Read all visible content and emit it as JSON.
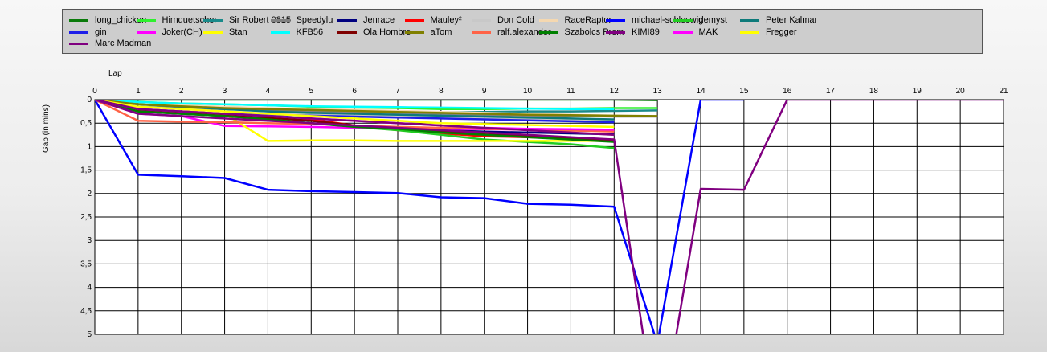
{
  "chart_data": {
    "type": "line",
    "xlabel": "Lap",
    "ylabel": "Gap (in mins)",
    "xlim": [
      0,
      21
    ],
    "ylim": [
      0,
      5
    ],
    "y_inverted": true,
    "grid": true,
    "x_ticks": [
      "0",
      "1",
      "2",
      "3",
      "4",
      "5",
      "6",
      "7",
      "8",
      "9",
      "10",
      "11",
      "12",
      "13",
      "14",
      "15",
      "16",
      "17",
      "18",
      "19",
      "20",
      "21"
    ],
    "y_ticks": [
      "0",
      "0,5",
      "1",
      "1,5",
      "2",
      "2,5",
      "3",
      "3,5",
      "4",
      "4,5",
      "5"
    ],
    "legend_position": "top",
    "series": [
      {
        "name": "long_chicken",
        "color": "#0a7a0a",
        "x": [
          0,
          1,
          2,
          3,
          4,
          5,
          6,
          7,
          8,
          9,
          10,
          11,
          12,
          13
        ],
        "y": [
          0,
          0,
          0,
          0,
          0,
          0,
          0,
          0,
          0,
          0,
          0,
          0,
          0,
          0.01
        ]
      },
      {
        "name": "Hirnquetscher",
        "color": "#2ef02e",
        "x": [
          0,
          1,
          2,
          3,
          4,
          5,
          6,
          7,
          8,
          9,
          10,
          11,
          12,
          13
        ],
        "y": [
          0,
          0.05,
          0.08,
          0.1,
          0.12,
          0.15,
          0.17,
          0.18,
          0.2,
          0.2,
          0.19,
          0.19,
          0.18,
          0.18
        ]
      },
      {
        "name": "Sir Robert 0815",
        "color": "#1a8a8a",
        "x": [
          0,
          1,
          2,
          3,
          4,
          5,
          6,
          7,
          8,
          9,
          10,
          11,
          12,
          13
        ],
        "y": [
          0,
          0.1,
          0.15,
          0.2,
          0.23,
          0.25,
          0.26,
          0.27,
          0.27,
          0.26,
          0.25,
          0.25,
          0.24,
          0.23
        ]
      },
      {
        "name": "Speedylu",
        "color": "#808080",
        "x": [
          0,
          1,
          2,
          3,
          4,
          5,
          6,
          7,
          8,
          9,
          10,
          11,
          12,
          13
        ],
        "y": [
          0,
          0.15,
          0.18,
          0.2,
          0.22,
          0.24,
          0.26,
          0.28,
          0.3,
          0.32,
          0.34,
          0.35,
          0.36,
          0.36
        ]
      },
      {
        "name": "Jenrace",
        "color": "#00007f",
        "x": [
          0,
          1,
          2,
          3,
          4,
          5,
          6,
          7,
          8,
          9,
          10,
          11,
          12
        ],
        "y": [
          0,
          0.25,
          0.3,
          0.33,
          0.38,
          0.45,
          0.55,
          0.62,
          0.65,
          0.68,
          0.7,
          0.72,
          0.74
        ]
      },
      {
        "name": "Mauley²",
        "color": "#ff0000",
        "x": [
          0,
          1,
          2,
          3,
          4,
          5,
          6,
          7,
          8,
          9,
          10,
          11,
          12
        ],
        "y": [
          0,
          0.2,
          0.25,
          0.3,
          0.35,
          0.42,
          0.55,
          0.65,
          0.72,
          0.78,
          0.8,
          0.83,
          0.85
        ]
      },
      {
        "name": "Don Cold",
        "color": "#c8c8c8",
        "x": [
          0,
          1,
          2,
          3,
          4,
          5,
          6,
          7,
          8,
          9,
          10,
          11,
          12
        ],
        "y": [
          0,
          0.15,
          0.2,
          0.25,
          0.3,
          0.32,
          0.34,
          0.36,
          0.38,
          0.4,
          0.42,
          0.44,
          0.45
        ]
      },
      {
        "name": "RaceRaptor",
        "color": "#f5d8b0",
        "x": [
          0,
          1,
          2,
          3,
          4,
          5,
          6,
          7,
          8,
          9,
          10,
          11,
          12
        ],
        "y": [
          0,
          0.1,
          0.12,
          0.15,
          0.18,
          0.2,
          0.22,
          0.24,
          0.26,
          0.28,
          0.3,
          0.32,
          0.34
        ]
      },
      {
        "name": "michael-schleswig",
        "color": "#0000ff",
        "x": [
          0,
          1,
          2,
          3,
          4,
          5,
          6,
          7,
          8,
          9,
          10,
          11,
          12,
          13,
          14,
          15
        ],
        "y": [
          0,
          1.6,
          1.63,
          1.67,
          1.92,
          1.95,
          1.97,
          1.99,
          2.08,
          2.1,
          2.22,
          2.24,
          2.28,
          5.2,
          0,
          0
        ]
      },
      {
        "name": "demyst",
        "color": "#22cc22",
        "x": [
          0,
          1,
          2,
          3,
          4,
          5,
          6,
          7,
          8,
          9,
          10,
          11,
          12
        ],
        "y": [
          0,
          0.25,
          0.3,
          0.35,
          0.42,
          0.5,
          0.58,
          0.65,
          0.75,
          0.85,
          0.9,
          0.95,
          1.03
        ]
      },
      {
        "name": "Peter Kalmar",
        "color": "#0d7a7a",
        "x": [
          0,
          1,
          2,
          3,
          4,
          5,
          6,
          7,
          8,
          9,
          10,
          11,
          12
        ],
        "y": [
          0,
          0.1,
          0.15,
          0.2,
          0.25,
          0.28,
          0.3,
          0.32,
          0.34,
          0.36,
          0.38,
          0.4,
          0.42
        ]
      },
      {
        "name": "gin",
        "color": "#1e1ee8",
        "x": [
          0,
          1,
          2,
          3,
          4,
          5,
          6,
          7,
          8,
          9,
          10,
          11,
          12
        ],
        "y": [
          0,
          0.2,
          0.25,
          0.3,
          0.32,
          0.34,
          0.36,
          0.38,
          0.4,
          0.42,
          0.44,
          0.46,
          0.48
        ]
      },
      {
        "name": "Joker(CH)",
        "color": "#ff00ff",
        "x": [
          0,
          1,
          2,
          3,
          4,
          5,
          6,
          7,
          8,
          9,
          10,
          11,
          12
        ],
        "y": [
          0,
          0.3,
          0.35,
          0.56,
          0.57,
          0.58,
          0.6,
          0.61,
          0.62,
          0.63,
          0.64,
          0.65,
          0.66
        ]
      },
      {
        "name": "Stan",
        "color": "#ffff00",
        "x": [
          0,
          1,
          2,
          3,
          4,
          5,
          6,
          7,
          8,
          9,
          10,
          11,
          12
        ],
        "y": [
          0,
          0.2,
          0.25,
          0.3,
          0.88,
          0.87,
          0.87,
          0.88,
          0.88,
          0.88,
          0.88,
          0.88,
          0.88
        ]
      },
      {
        "name": "KFB56",
        "color": "#00ffff",
        "x": [
          0,
          1,
          2,
          3,
          4,
          5,
          6,
          7,
          8,
          9,
          10,
          11,
          12
        ],
        "y": [
          0,
          0.05,
          0.08,
          0.1,
          0.12,
          0.14,
          0.15,
          0.16,
          0.17,
          0.18,
          0.19,
          0.2,
          0.2
        ]
      },
      {
        "name": "Ola Hombre",
        "color": "#7f0000",
        "x": [
          0,
          1,
          2,
          3,
          4,
          5,
          6,
          7,
          8,
          9,
          10,
          11,
          12
        ],
        "y": [
          0,
          0.22,
          0.28,
          0.33,
          0.38,
          0.45,
          0.55,
          0.62,
          0.68,
          0.74,
          0.78,
          0.82,
          0.86
        ]
      },
      {
        "name": "aTom",
        "color": "#808000",
        "x": [
          0,
          1,
          2,
          3,
          4,
          5,
          6,
          7,
          8,
          9,
          10,
          11,
          12,
          13
        ],
        "y": [
          0,
          0.1,
          0.14,
          0.18,
          0.2,
          0.22,
          0.24,
          0.26,
          0.28,
          0.3,
          0.32,
          0.33,
          0.34,
          0.35
        ]
      },
      {
        "name": "ralf.alexander",
        "color": "#ff6347",
        "x": [
          0,
          1,
          2,
          3,
          4,
          5,
          6,
          7,
          8,
          9,
          10,
          11,
          12
        ],
        "y": [
          0,
          0.45,
          0.47,
          0.48,
          0.5,
          0.52,
          0.55,
          0.58,
          0.6,
          0.62,
          0.64,
          0.66,
          0.68
        ]
      },
      {
        "name": "Szabolcs Prem",
        "color": "#008000",
        "x": [
          0,
          1,
          2,
          3,
          4,
          5,
          6,
          7,
          8,
          9,
          10,
          11,
          12
        ],
        "y": [
          0,
          0.25,
          0.3,
          0.35,
          0.42,
          0.5,
          0.58,
          0.62,
          0.7,
          0.75,
          0.8,
          0.85,
          0.9
        ]
      },
      {
        "name": "KIMI89",
        "color": "#800080",
        "x": [
          0,
          1,
          2,
          3,
          4,
          5,
          6,
          7,
          8,
          9,
          10,
          11,
          12,
          12.7,
          13.4,
          14,
          15,
          16,
          17,
          18,
          19,
          20,
          21
        ],
        "y": [
          0,
          0.3,
          0.35,
          0.4,
          0.45,
          0.5,
          0.55,
          0.6,
          0.65,
          0.7,
          0.75,
          0.8,
          0.85,
          5.2,
          5.2,
          1.9,
          1.92,
          0,
          0,
          0,
          0,
          0,
          0
        ]
      },
      {
        "name": "MAK",
        "color": "#ff00ff",
        "x": [
          0,
          1,
          2,
          3,
          4,
          5,
          6,
          7,
          8,
          9,
          10,
          11,
          12
        ],
        "y": [
          0,
          0.2,
          0.25,
          0.3,
          0.35,
          0.4,
          0.45,
          0.5,
          0.55,
          0.6,
          0.62,
          0.63,
          0.64
        ]
      },
      {
        "name": "Fregger",
        "color": "#ffff00",
        "x": [
          0,
          1,
          2,
          3,
          4,
          5,
          6,
          7,
          8,
          9,
          10,
          11,
          12
        ],
        "y": [
          0,
          0.15,
          0.2,
          0.25,
          0.3,
          0.35,
          0.4,
          0.45,
          0.5,
          0.52,
          0.54,
          0.56,
          0.58
        ]
      },
      {
        "name": "Marc Madman",
        "color": "#800080",
        "x": [
          0,
          1,
          2,
          3,
          4,
          5,
          6,
          7,
          8,
          9,
          10,
          11,
          12
        ],
        "y": [
          0,
          0.2,
          0.25,
          0.3,
          0.35,
          0.4,
          0.45,
          0.5,
          0.55,
          0.6,
          0.65,
          0.7,
          0.75
        ]
      }
    ]
  }
}
